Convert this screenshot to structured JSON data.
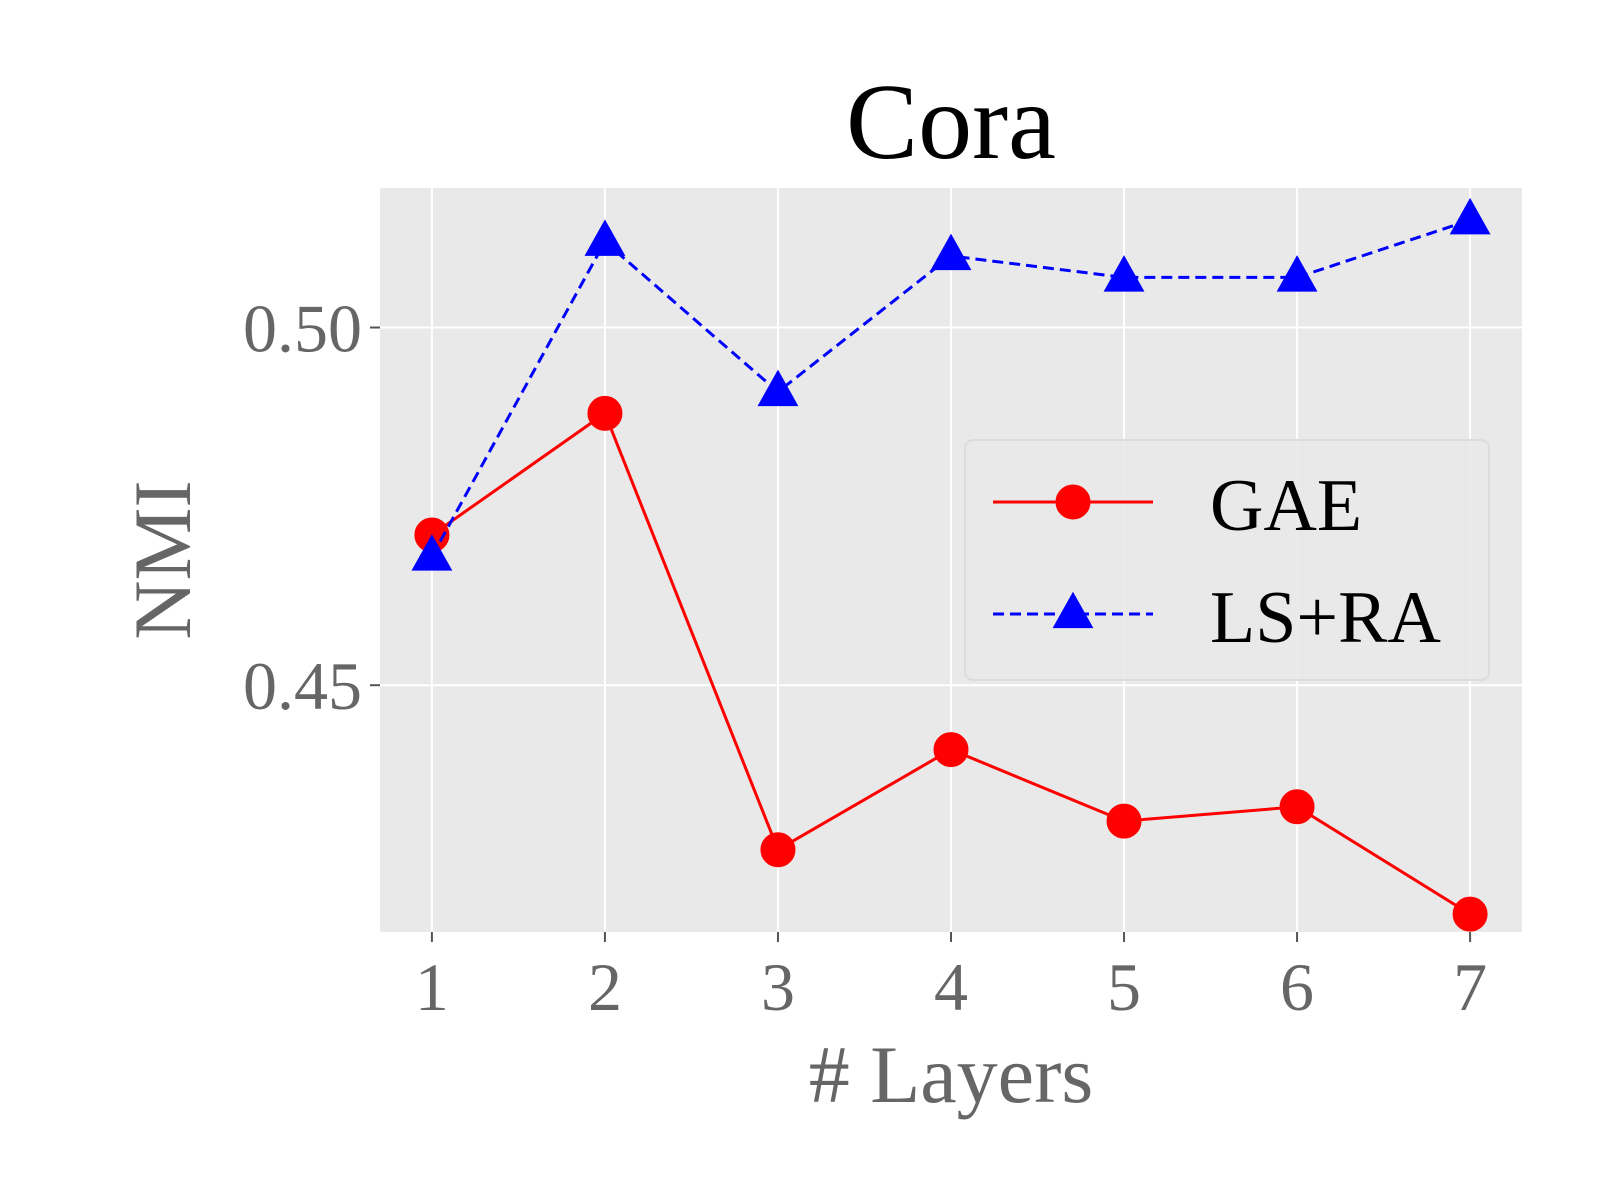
{
  "chart_data": {
    "type": "line",
    "title": "Cora",
    "xlabel": "# Layers",
    "ylabel": "NMI",
    "x": [
      1,
      2,
      3,
      4,
      5,
      6,
      7
    ],
    "x_ticks": [
      "1",
      "2",
      "3",
      "4",
      "5",
      "6",
      "7"
    ],
    "y_ticks": [
      {
        "value": 0.45,
        "label": "0.45"
      },
      {
        "value": 0.5,
        "label": "0.50"
      }
    ],
    "xlim": [
      0.7,
      7.3
    ],
    "ylim": [
      0.4155,
      0.5195
    ],
    "grid": true,
    "legend_position": "center-right",
    "series": [
      {
        "name": "GAE",
        "values": [
          0.471,
          0.488,
          0.427,
          0.441,
          0.431,
          0.433,
          0.418
        ],
        "color": "#ff0000",
        "line_style": "solid",
        "marker": "circle"
      },
      {
        "name": "LS+RA",
        "values": [
          0.468,
          0.512,
          0.491,
          0.51,
          0.507,
          0.507,
          0.515
        ],
        "color": "#0000ff",
        "line_style": "dashed",
        "marker": "triangle"
      }
    ]
  },
  "colors": {
    "plot_background": "#e9e9e9",
    "grid": "#ffffff",
    "tick_text": "#666666",
    "title_text": "#000000"
  }
}
